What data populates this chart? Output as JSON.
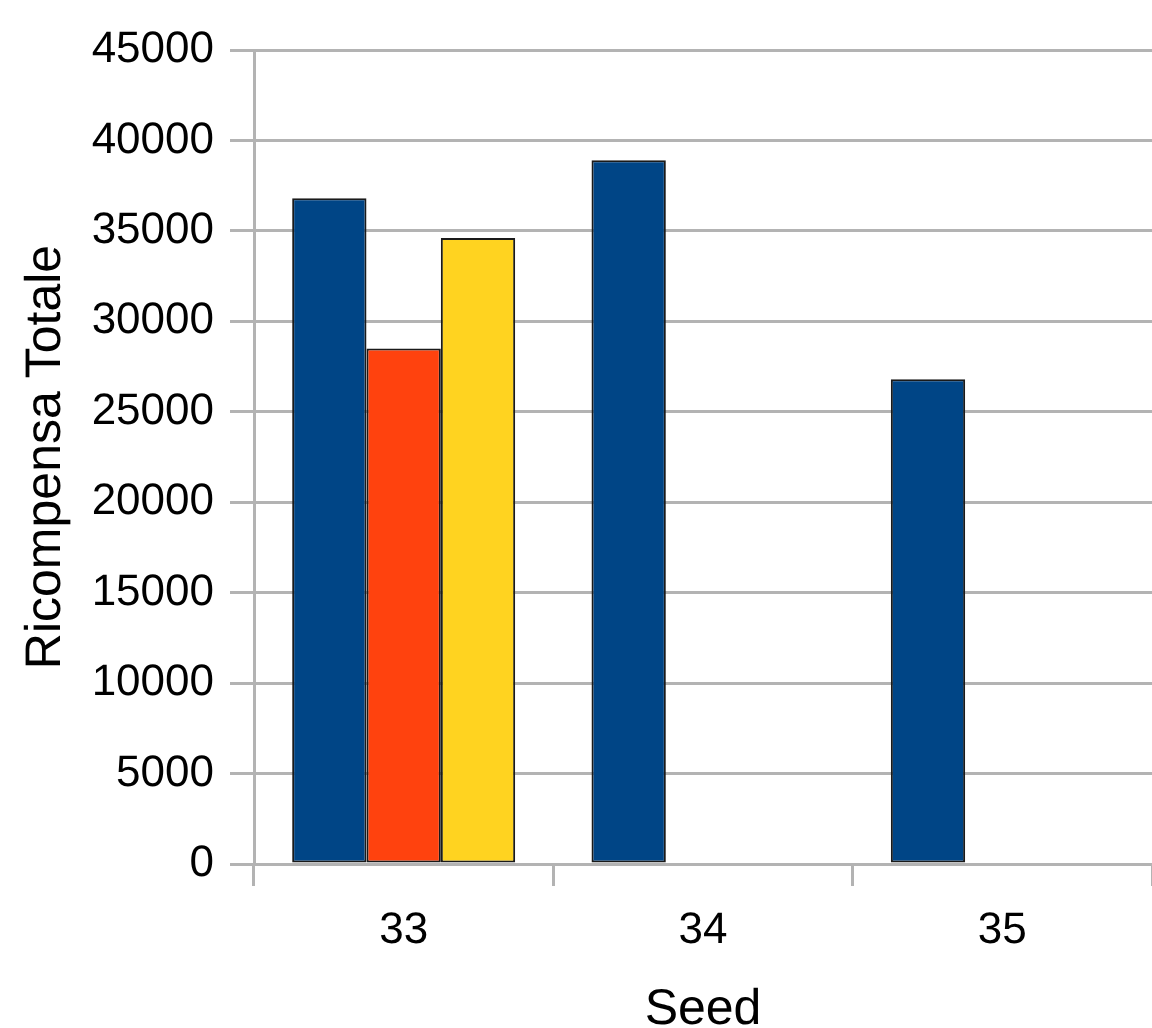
{
  "chart_data": {
    "type": "bar",
    "xlabel": "Seed",
    "ylabel": "Ricompensa Totale",
    "categories": [
      "33",
      "34",
      "35"
    ],
    "series": [
      {
        "color": "#004586",
        "values": [
          36800,
          38900,
          26800
        ]
      },
      {
        "color": "#ff420e",
        "values": [
          28500,
          null,
          null
        ]
      },
      {
        "color": "#ffd320",
        "values": [
          34600,
          null,
          null
        ]
      }
    ],
    "ylim": [
      0,
      45000
    ],
    "yticks": [
      0,
      5000,
      10000,
      15000,
      20000,
      25000,
      30000,
      35000,
      40000,
      45000
    ],
    "grid": "y"
  }
}
